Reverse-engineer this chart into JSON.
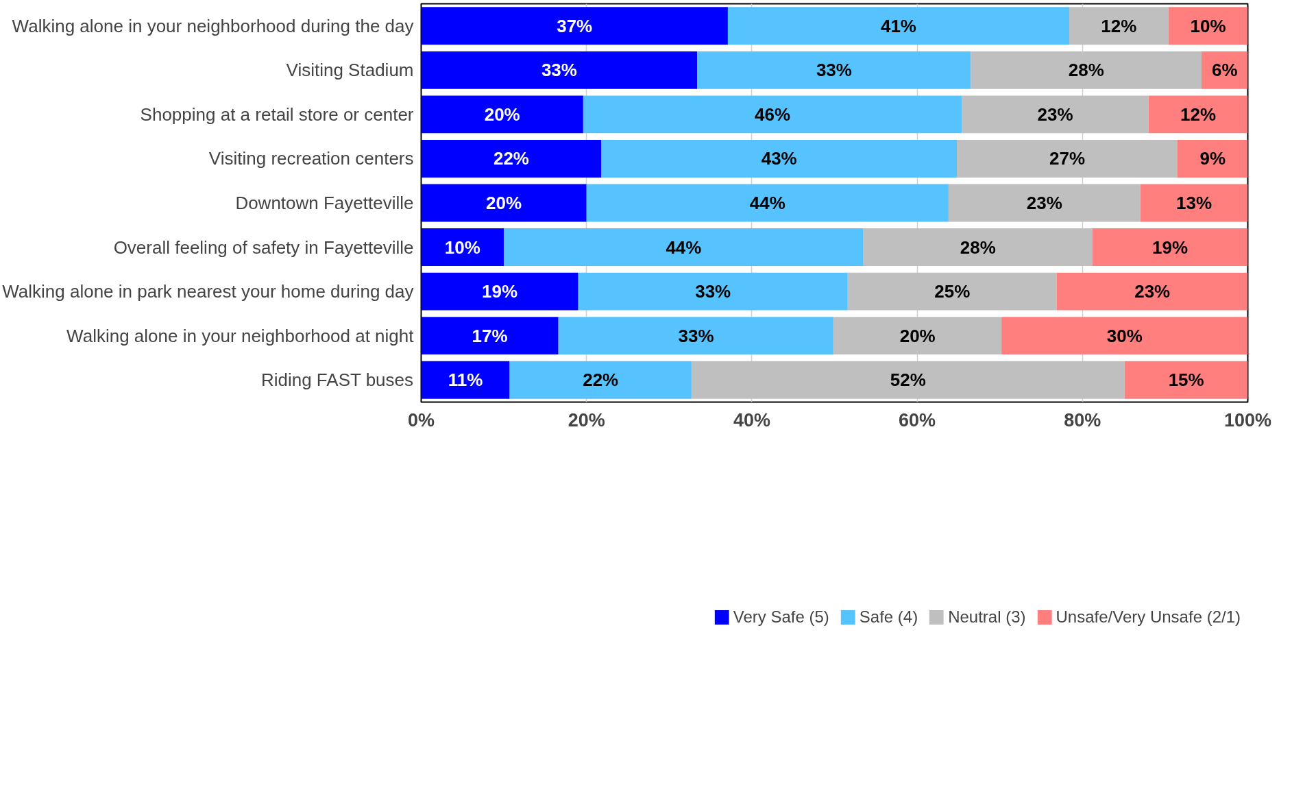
{
  "chart_data": {
    "type": "bar",
    "orientation": "horizontal",
    "stacked": true,
    "categories": [
      "Walking alone in your neighborhood during the day",
      "Visiting Stadium",
      "Shopping at a retail store or center",
      "Visiting recreation centers",
      "Downtown Fayetteville",
      "Overall feeling of safety in Fayetteville",
      "Walking alone in park nearest your home during day",
      "Walking alone in your neighborhood at night",
      "Riding FAST buses"
    ],
    "series": [
      {
        "name": "Very Safe (5)",
        "color": "#0000ff",
        "values": [
          37.1,
          33.4,
          19.6,
          21.8,
          20.0,
          10.0,
          19.0,
          16.6,
          10.7
        ],
        "value_labels": [
          "37%",
          "33%",
          "20%",
          "22%",
          "20%",
          "10%",
          "19%",
          "17%",
          "11%"
        ]
      },
      {
        "name": "Safe (4)",
        "color": "#56c3ff",
        "values": [
          41.3,
          33.1,
          45.8,
          43.0,
          43.8,
          43.5,
          32.6,
          33.3,
          22.0
        ],
        "value_labels": [
          "41%",
          "33%",
          "46%",
          "43%",
          "44%",
          "44%",
          "33%",
          "33%",
          "22%"
        ]
      },
      {
        "name": "Neutral (3)",
        "color": "#bfbfbf",
        "values": [
          12.0,
          27.9,
          22.6,
          26.7,
          23.2,
          27.7,
          25.3,
          20.3,
          52.4
        ],
        "value_labels": [
          "12%",
          "28%",
          "23%",
          "27%",
          "23%",
          "28%",
          "25%",
          "20%",
          "52%"
        ]
      },
      {
        "name": "Unsafe/Very Unsafe (2/1)",
        "color": "#ff7f7f",
        "values": [
          9.6,
          5.6,
          12.0,
          8.5,
          13.0,
          18.8,
          23.1,
          29.8,
          14.9
        ],
        "value_labels": [
          "10%",
          "6%",
          "12%",
          "9%",
          "13%",
          "19%",
          "23%",
          "30%",
          "15%"
        ]
      }
    ],
    "xlim": [
      0,
      100
    ],
    "xticks": [
      {
        "value": 0,
        "label": "0%"
      },
      {
        "value": 20,
        "label": "20%"
      },
      {
        "value": 40,
        "label": "40%"
      },
      {
        "value": 60,
        "label": "60%"
      },
      {
        "value": 80,
        "label": "80%"
      },
      {
        "value": 100,
        "label": "100%"
      }
    ],
    "grid": "x",
    "legend": "bottom"
  }
}
